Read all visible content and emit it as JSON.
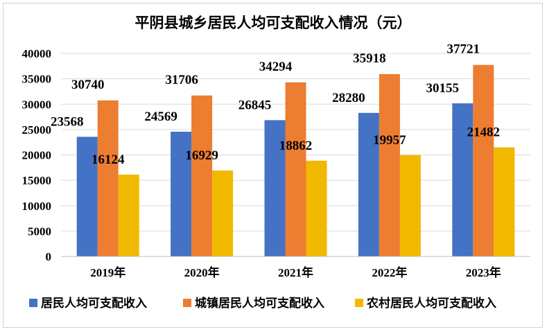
{
  "chart_data": {
    "type": "bar",
    "title": "平阴县城乡居民人均可支配收入情况（元）",
    "categories": [
      "2019年",
      "2020年",
      "2021年",
      "2022年",
      "2023年"
    ],
    "series": [
      {
        "name": "居民人均可支配收入",
        "color": "#4472C4",
        "values": [
          23568,
          24569,
          26845,
          28280,
          30155
        ]
      },
      {
        "name": "城镇居民人均可支配收入",
        "color": "#ED7D31",
        "values": [
          30740,
          31706,
          34294,
          35918,
          37721
        ]
      },
      {
        "name": "农村居民人均可支配收入",
        "color": "#F2B800",
        "values": [
          16124,
          16929,
          18862,
          19957,
          21482
        ]
      }
    ],
    "ylim": [
      0,
      40000
    ],
    "yticks": [
      0,
      5000,
      10000,
      15000,
      20000,
      25000,
      30000,
      35000,
      40000
    ],
    "grid": true,
    "legend": "bottom"
  }
}
